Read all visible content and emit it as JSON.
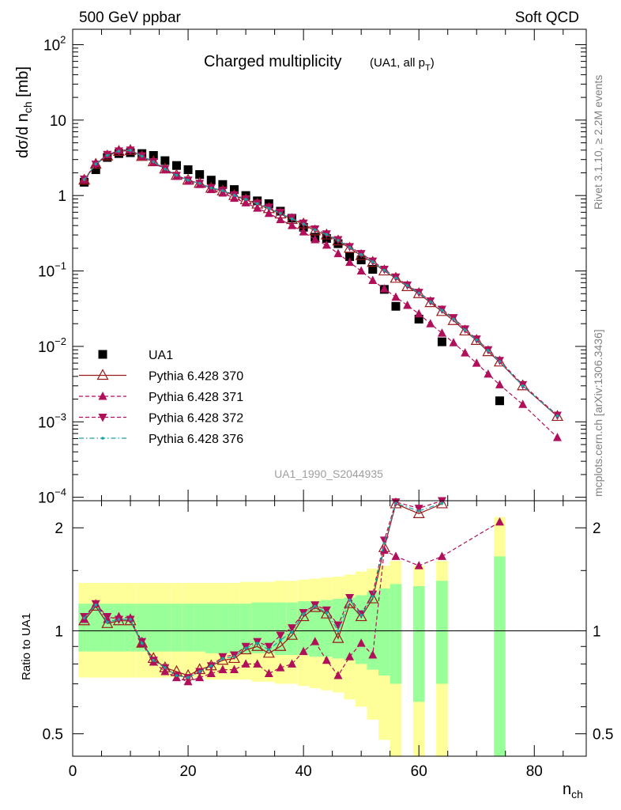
{
  "header": {
    "left": "500 GeV ppbar",
    "right": "Soft QCD"
  },
  "side_labels": {
    "upper": "Rivet 3.1.10, ≥ 2.2M events",
    "lower": "mcplots.cern.ch [arXiv:1306.3436]"
  },
  "plot_title": {
    "main": "Charged multiplicity",
    "sub_prefix": "(UA1, all p",
    "sub_subscript": "T",
    "sub_suffix": ")"
  },
  "watermark": "UA1_1990_S2044935",
  "axes": {
    "y_top_label": "dσ/d n",
    "y_top_label_sub": "ch",
    "y_top_label_unit": " [mb]",
    "y_bottom_label": "Ratio to UA1",
    "x_label": "n",
    "x_label_sub": "ch"
  },
  "colors": {
    "data": "#000000",
    "p370": "#9b1b1b",
    "p371": "#b0105a",
    "p372": "#b0105a",
    "p376": "#1aa3a3",
    "band_outer": "#ffff99",
    "band_inner": "#99ff99"
  },
  "chart_data": [
    {
      "type": "scatter",
      "title": "Charged multiplicity (UA1, all pT)",
      "xlabel": "n_ch",
      "ylabel": "dσ/d n_ch [mb]",
      "y_scale": "log",
      "xlim": [
        0,
        89
      ],
      "ylim": [
        9e-05,
        160
      ],
      "y_ticks": [
        {
          "value": 100,
          "base": "10",
          "exp": "2"
        },
        {
          "value": 10,
          "base": "10",
          "exp": ""
        },
        {
          "value": 1,
          "base": "1",
          "exp": ""
        },
        {
          "value": 0.1,
          "base": "10",
          "exp": "−1"
        },
        {
          "value": 0.01,
          "base": "10",
          "exp": "−2"
        },
        {
          "value": 0.001,
          "base": "10",
          "exp": "−3"
        },
        {
          "value": 0.0001,
          "base": "10",
          "exp": "−4"
        }
      ],
      "legend_position": "middle-left",
      "series": [
        {
          "name": "UA1",
          "marker": "square",
          "x": [
            2,
            4,
            6,
            8,
            10,
            12,
            14,
            16,
            18,
            20,
            22,
            24,
            26,
            28,
            30,
            32,
            34,
            36,
            38,
            40,
            42,
            44,
            46,
            48,
            50,
            52,
            54,
            56,
            60,
            64,
            74
          ],
          "y": [
            1.5,
            2.2,
            3.2,
            3.6,
            3.7,
            3.6,
            3.4,
            2.9,
            2.5,
            2.2,
            1.9,
            1.6,
            1.4,
            1.2,
            1.0,
            0.85,
            0.78,
            0.62,
            0.5,
            0.38,
            0.28,
            0.27,
            0.23,
            0.155,
            0.14,
            0.105,
            0.057,
            0.034,
            0.023,
            0.0115,
            0.0019
          ]
        },
        {
          "name": "Pythia 6.428 370",
          "marker": "open-triangle-up",
          "line": "solid",
          "x": [
            2,
            4,
            6,
            8,
            10,
            12,
            14,
            16,
            18,
            20,
            22,
            24,
            26,
            28,
            30,
            32,
            34,
            36,
            38,
            40,
            42,
            44,
            46,
            48,
            50,
            52,
            54,
            56,
            58,
            60,
            62,
            64,
            66,
            68,
            70,
            72,
            74,
            78,
            84
          ],
          "y": [
            1.6,
            2.6,
            3.35,
            3.85,
            3.95,
            3.3,
            2.8,
            2.25,
            1.85,
            1.6,
            1.45,
            1.25,
            1.15,
            1.0,
            0.88,
            0.77,
            0.67,
            0.57,
            0.48,
            0.42,
            0.34,
            0.3,
            0.25,
            0.2,
            0.16,
            0.13,
            0.1,
            0.08,
            0.062,
            0.05,
            0.038,
            0.029,
            0.022,
            0.016,
            0.012,
            0.0085,
            0.0062,
            0.003,
            0.00118
          ]
        },
        {
          "name": "Pythia 6.428 371",
          "marker": "filled-triangle-up",
          "line": "dashed",
          "x": [
            2,
            4,
            6,
            8,
            10,
            12,
            14,
            16,
            18,
            20,
            22,
            24,
            26,
            28,
            30,
            32,
            34,
            36,
            38,
            40,
            42,
            44,
            46,
            48,
            50,
            52,
            54,
            56,
            58,
            60,
            62,
            64,
            66,
            68,
            70,
            72,
            74,
            78,
            84
          ],
          "y": [
            1.62,
            2.65,
            3.45,
            3.95,
            4.05,
            3.3,
            2.75,
            2.2,
            1.8,
            1.55,
            1.4,
            1.2,
            1.08,
            0.92,
            0.8,
            0.68,
            0.58,
            0.48,
            0.4,
            0.33,
            0.26,
            0.22,
            0.17,
            0.13,
            0.1,
            0.075,
            0.058,
            0.045,
            0.035,
            0.027,
            0.02,
            0.015,
            0.0112,
            0.0082,
            0.006,
            0.0043,
            0.0031,
            0.0017,
            0.00062
          ]
        },
        {
          "name": "Pythia 6.428 372",
          "marker": "filled-triangle-down",
          "line": "dashed",
          "x": [
            2,
            4,
            6,
            8,
            10,
            12,
            14,
            16,
            18,
            20,
            22,
            24,
            26,
            28,
            30,
            32,
            34,
            36,
            38,
            40,
            42,
            44,
            46,
            48,
            50,
            52,
            54,
            56,
            58,
            60,
            62,
            64,
            66,
            68,
            70,
            72,
            74,
            78,
            84
          ],
          "y": [
            1.65,
            2.6,
            3.5,
            3.9,
            4.0,
            3.35,
            2.8,
            2.25,
            1.85,
            1.6,
            1.45,
            1.27,
            1.17,
            1.02,
            0.9,
            0.79,
            0.7,
            0.6,
            0.51,
            0.43,
            0.36,
            0.31,
            0.26,
            0.21,
            0.17,
            0.135,
            0.105,
            0.083,
            0.065,
            0.052,
            0.04,
            0.031,
            0.024,
            0.017,
            0.0125,
            0.009,
            0.0065,
            0.0031,
            0.00122
          ]
        },
        {
          "name": "Pythia 6.428 376",
          "marker": "dot",
          "line": "dash-dot",
          "x": [
            2,
            4,
            6,
            8,
            10,
            12,
            14,
            16,
            18,
            20,
            22,
            24,
            26,
            28,
            30,
            32,
            34,
            36,
            38,
            40,
            42,
            44,
            46,
            48,
            50,
            52,
            54,
            56,
            58,
            60,
            62,
            64,
            66,
            68,
            70,
            72,
            74,
            78,
            84
          ],
          "y": [
            1.63,
            2.62,
            3.4,
            3.88,
            3.98,
            3.32,
            2.8,
            2.25,
            1.86,
            1.6,
            1.45,
            1.26,
            1.16,
            1.01,
            0.89,
            0.78,
            0.68,
            0.58,
            0.49,
            0.42,
            0.35,
            0.305,
            0.255,
            0.205,
            0.165,
            0.132,
            0.102,
            0.081,
            0.064,
            0.051,
            0.039,
            0.03,
            0.023,
            0.0165,
            0.0122,
            0.0088,
            0.0063,
            0.003,
            0.0012
          ]
        }
      ]
    },
    {
      "type": "line",
      "title": "",
      "xlabel": "n_ch",
      "ylabel": "Ratio to UA1",
      "y_scale": "log",
      "xlim": [
        0,
        89
      ],
      "ylim": [
        0.43,
        2.4
      ],
      "x_ticks": [
        0,
        20,
        40,
        60,
        80
      ],
      "y_ticks": [
        0.5,
        1,
        2
      ],
      "reference_line": 1,
      "uncertainty_bands": {
        "x": [
          2,
          4,
          6,
          8,
          10,
          12,
          14,
          16,
          18,
          20,
          22,
          24,
          26,
          28,
          30,
          32,
          34,
          36,
          38,
          40,
          42,
          44,
          46,
          48,
          50,
          52,
          54,
          56,
          60,
          64,
          74
        ],
        "outer_low": [
          0.73,
          0.73,
          0.73,
          0.73,
          0.73,
          0.73,
          0.73,
          0.73,
          0.73,
          0.73,
          0.73,
          0.72,
          0.72,
          0.72,
          0.72,
          0.71,
          0.71,
          0.7,
          0.7,
          0.69,
          0.68,
          0.67,
          0.66,
          0.63,
          0.6,
          0.55,
          0.48,
          0.4,
          0.4,
          0.4,
          0.4
        ],
        "outer_high": [
          1.38,
          1.38,
          1.38,
          1.38,
          1.38,
          1.38,
          1.38,
          1.38,
          1.38,
          1.38,
          1.38,
          1.38,
          1.38,
          1.38,
          1.39,
          1.39,
          1.39,
          1.4,
          1.4,
          1.41,
          1.42,
          1.43,
          1.44,
          1.46,
          1.49,
          1.52,
          1.55,
          1.6,
          1.55,
          1.6,
          2.15
        ],
        "inner_low": [
          0.87,
          0.87,
          0.87,
          0.87,
          0.87,
          0.87,
          0.87,
          0.87,
          0.87,
          0.87,
          0.87,
          0.86,
          0.86,
          0.86,
          0.86,
          0.86,
          0.86,
          0.85,
          0.85,
          0.85,
          0.84,
          0.84,
          0.83,
          0.82,
          0.8,
          0.77,
          0.74,
          0.7,
          0.62,
          0.7,
          0.4
        ],
        "inner_high": [
          1.2,
          1.2,
          1.2,
          1.2,
          1.2,
          1.2,
          1.2,
          1.2,
          1.2,
          1.2,
          1.2,
          1.2,
          1.2,
          1.2,
          1.2,
          1.21,
          1.21,
          1.21,
          1.21,
          1.22,
          1.22,
          1.23,
          1.24,
          1.25,
          1.27,
          1.3,
          1.33,
          1.37,
          1.35,
          1.4,
          1.65
        ]
      },
      "series": [
        {
          "name": "Pythia 6.428 370",
          "x": [
            2,
            4,
            6,
            8,
            10,
            12,
            14,
            16,
            18,
            20,
            22,
            24,
            26,
            28,
            30,
            32,
            34,
            36,
            38,
            40,
            42,
            44,
            46,
            48,
            50,
            52,
            54,
            56,
            60,
            64
          ],
          "y": [
            1.07,
            1.18,
            1.05,
            1.07,
            1.07,
            0.92,
            0.83,
            0.78,
            0.76,
            0.74,
            0.77,
            0.79,
            0.82,
            0.83,
            0.88,
            0.9,
            0.86,
            0.9,
            0.97,
            1.1,
            1.17,
            1.12,
            0.95,
            1.2,
            1.1,
            1.24,
            1.75,
            2.35,
            2.2,
            2.35
          ]
        },
        {
          "name": "Pythia 6.428 371",
          "x": [
            2,
            4,
            6,
            8,
            10,
            12,
            14,
            16,
            18,
            20,
            22,
            24,
            26,
            28,
            30,
            32,
            34,
            36,
            38,
            40,
            42,
            44,
            46,
            48,
            50,
            52,
            54,
            56,
            60,
            64,
            74
          ],
          "y": [
            1.08,
            1.2,
            1.08,
            1.1,
            1.09,
            0.92,
            0.81,
            0.76,
            0.73,
            0.71,
            0.73,
            0.75,
            0.77,
            0.77,
            0.8,
            0.8,
            0.75,
            0.78,
            0.8,
            0.87,
            0.93,
            0.82,
            0.74,
            0.84,
            0.92,
            0.85,
            1.72,
            1.65,
            1.55,
            1.65,
            2.08
          ]
        },
        {
          "name": "Pythia 6.428 372",
          "x": [
            2,
            4,
            6,
            8,
            10,
            12,
            14,
            16,
            18,
            20,
            22,
            24,
            26,
            28,
            30,
            32,
            34,
            36,
            38,
            40,
            42,
            44,
            46,
            48,
            50,
            52,
            54,
            56,
            60,
            64
          ],
          "y": [
            1.1,
            1.2,
            1.1,
            1.08,
            1.08,
            0.93,
            0.82,
            0.78,
            0.74,
            0.73,
            0.76,
            0.79,
            0.84,
            0.85,
            0.9,
            0.93,
            0.9,
            0.97,
            1.02,
            1.13,
            1.19,
            1.15,
            1.04,
            1.25,
            1.12,
            1.28,
            1.84,
            2.38,
            2.28,
            2.4
          ]
        },
        {
          "name": "Pythia 6.428 376",
          "x": [
            2,
            4,
            6,
            8,
            10,
            12,
            14,
            16,
            18,
            20,
            22,
            24,
            26,
            28,
            30,
            32,
            34,
            36,
            38,
            40,
            42,
            44,
            46,
            48,
            50,
            52,
            54,
            56,
            60,
            64
          ],
          "y": [
            1.09,
            1.19,
            1.06,
            1.08,
            1.08,
            0.92,
            0.82,
            0.78,
            0.74,
            0.73,
            0.76,
            0.79,
            0.83,
            0.84,
            0.89,
            0.92,
            0.88,
            0.94,
            0.99,
            1.12,
            1.18,
            1.13,
            1.0,
            1.23,
            1.11,
            1.26,
            1.8,
            2.36,
            2.24,
            2.36
          ]
        }
      ]
    }
  ]
}
